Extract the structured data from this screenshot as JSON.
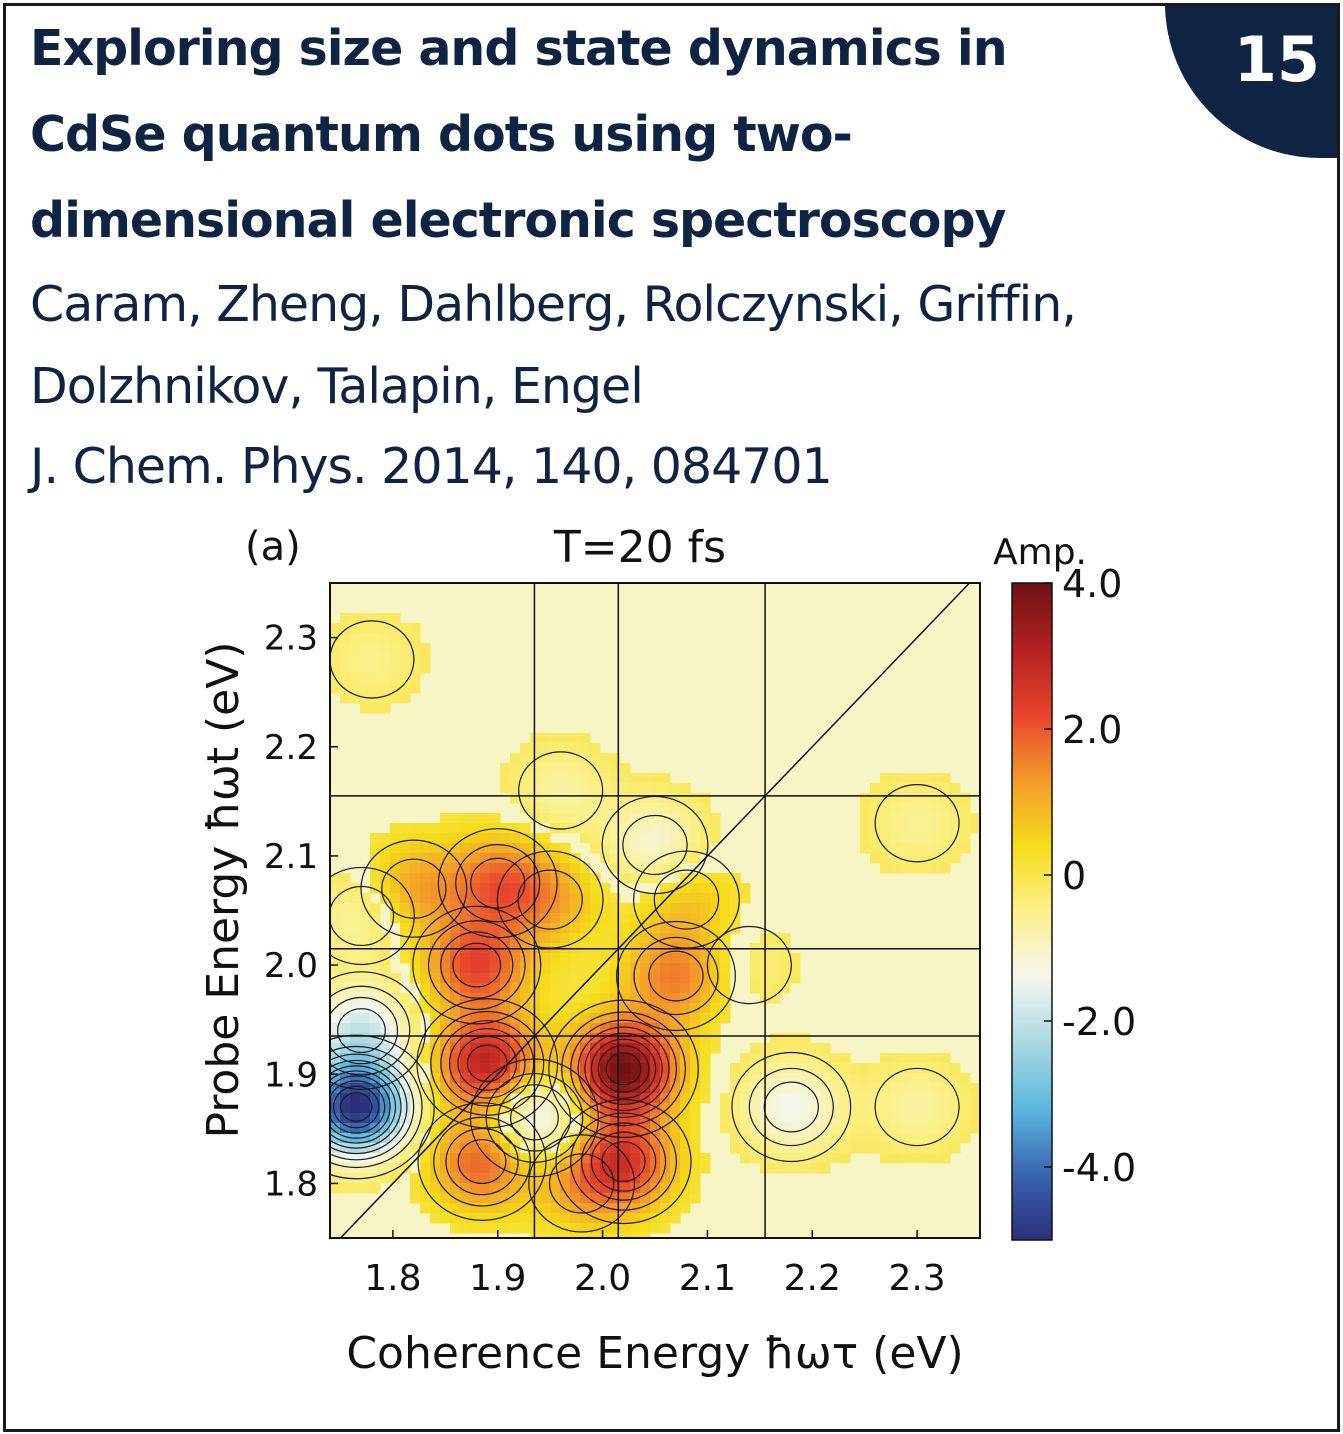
{
  "badge": {
    "number": "15"
  },
  "header": {
    "title_lines": [
      "Exploring size and state dynamics in",
      "CdSe quantum dots using two-",
      "dimensional electronic spectroscopy"
    ],
    "authors_lines": [
      "Caram, Zheng, Dahlberg, Rolczynski, Griffin,",
      "Dolzhnikov, Talapin, Engel"
    ],
    "citation": "J. Chem. Phys. 2014, 140, 084701"
  },
  "chart_data": {
    "type": "heatmap",
    "panel_label": "(a)",
    "title": "T=20 fs",
    "xlabel": "Coherence Energy ħωτ (eV)",
    "ylabel": "Probe Energy ħωt (eV)",
    "xlim": [
      1.74,
      2.36
    ],
    "ylim": [
      1.75,
      2.35
    ],
    "xticks": [
      "1.8",
      "1.9",
      "2.0",
      "2.1",
      "2.2",
      "2.3"
    ],
    "yticks": [
      "1.8",
      "1.9",
      "2.0",
      "2.1",
      "2.2",
      "2.3"
    ],
    "colorbar": {
      "label": "Amp.",
      "range": [
        -5.0,
        4.0
      ],
      "ticks": [
        "4.0",
        "2.0",
        "0",
        "-2.0",
        "-4.0"
      ],
      "colors": [
        "#2a2f7a",
        "#3a64b0",
        "#5bb7e0",
        "#a9d8e2",
        "#f4f6ef",
        "#fbf08a",
        "#f5dd1b",
        "#f39a2b",
        "#e8442d",
        "#b3201f",
        "#6d1215"
      ]
    },
    "guide_lines": {
      "vertical_x": [
        1.935,
        2.015,
        2.155
      ],
      "horizontal_y": [
        1.935,
        2.015,
        2.155
      ],
      "diagonal": true
    },
    "peaks": [
      {
        "x": 2.02,
        "y": 1.905,
        "amp": 4.0
      },
      {
        "x": 2.02,
        "y": 1.82,
        "amp": 2.3
      },
      {
        "x": 1.89,
        "y": 1.91,
        "amp": 3.1
      },
      {
        "x": 1.885,
        "y": 1.82,
        "amp": 2.0
      },
      {
        "x": 1.88,
        "y": 2.0,
        "amp": 2.2
      },
      {
        "x": 1.82,
        "y": 2.07,
        "amp": 1.2
      },
      {
        "x": 1.9,
        "y": 2.075,
        "amp": 1.7
      },
      {
        "x": 2.07,
        "y": 1.99,
        "amp": 1.6
      },
      {
        "x": 1.95,
        "y": 2.06,
        "amp": 1.0
      },
      {
        "x": 2.08,
        "y": 2.06,
        "amp": 0.8
      },
      {
        "x": 1.98,
        "y": 1.8,
        "amp": 1.0
      },
      {
        "x": 1.765,
        "y": 1.87,
        "amp": -5.0
      },
      {
        "x": 1.77,
        "y": 1.94,
        "amp": -1.8
      },
      {
        "x": 1.77,
        "y": 2.045,
        "amp": -0.8
      },
      {
        "x": 1.935,
        "y": 1.86,
        "amp": -2.0
      },
      {
        "x": 2.18,
        "y": 1.87,
        "amp": -1.4
      },
      {
        "x": 2.05,
        "y": 2.11,
        "amp": -1.2
      },
      {
        "x": 1.96,
        "y": 2.16,
        "amp": -0.7
      },
      {
        "x": 2.3,
        "y": 2.13,
        "amp": -0.6
      },
      {
        "x": 1.78,
        "y": 2.28,
        "amp": -0.5
      },
      {
        "x": 2.3,
        "y": 1.87,
        "amp": -0.7
      },
      {
        "x": 2.14,
        "y": 2.0,
        "amp": -0.4
      }
    ]
  }
}
